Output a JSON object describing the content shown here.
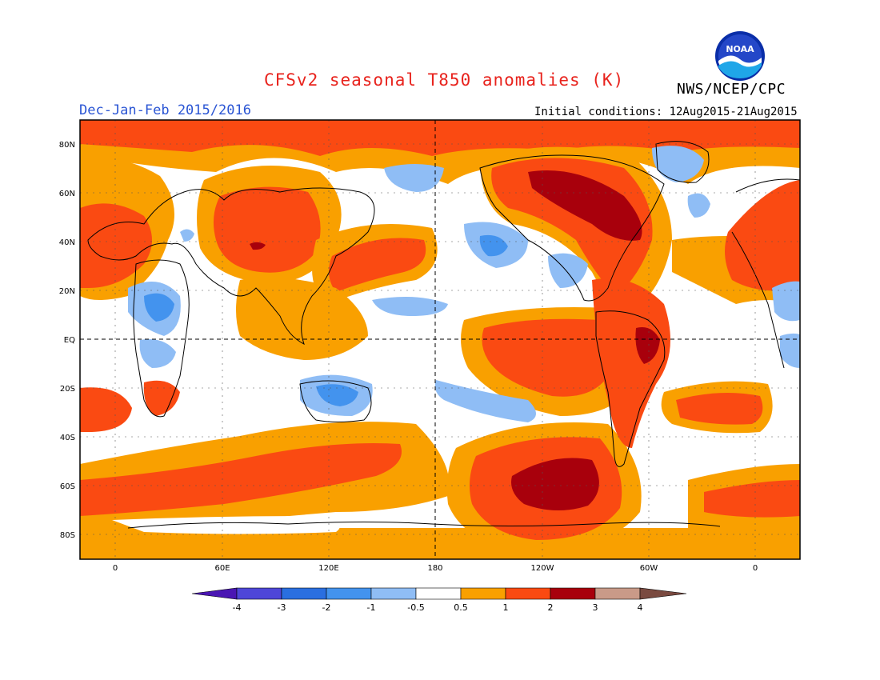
{
  "header": {
    "title": "CFSv2 seasonal T850 anomalies (K)",
    "agency": "NWS/NCEP/CPC",
    "season": "Dec-Jan-Feb 2015/2016",
    "initial_conditions": "Initial conditions: 12Aug2015-21Aug2015",
    "logo_text": "NOAA"
  },
  "map": {
    "lat_labels": [
      "80N",
      "60N",
      "40N",
      "20N",
      "EQ",
      "20S",
      "40S",
      "60S",
      "80S"
    ],
    "lon_labels": [
      "0",
      "60E",
      "120E",
      "180",
      "120W",
      "60W",
      "0"
    ]
  },
  "colorbar": {
    "labels": [
      "-4",
      "-3",
      "-2",
      "-1",
      "-0.5",
      "0.5",
      "1",
      "2",
      "3",
      "4"
    ],
    "colors": [
      "#4a16b3",
      "#4e46d8",
      "#2a6fe0",
      "#4393ee",
      "#8fbdf5",
      "#ffffff",
      "#f9a000",
      "#fa4a12",
      "#a8000c",
      "#c99a88",
      "#7a4a40"
    ]
  },
  "colors": {
    "title": "#e8231d",
    "season": "#2a55d4",
    "orange": "#f9a000",
    "red": "#fa4a12",
    "darkred": "#a8000c",
    "lightblue": "#8fbdf5",
    "blue": "#4393ee"
  }
}
